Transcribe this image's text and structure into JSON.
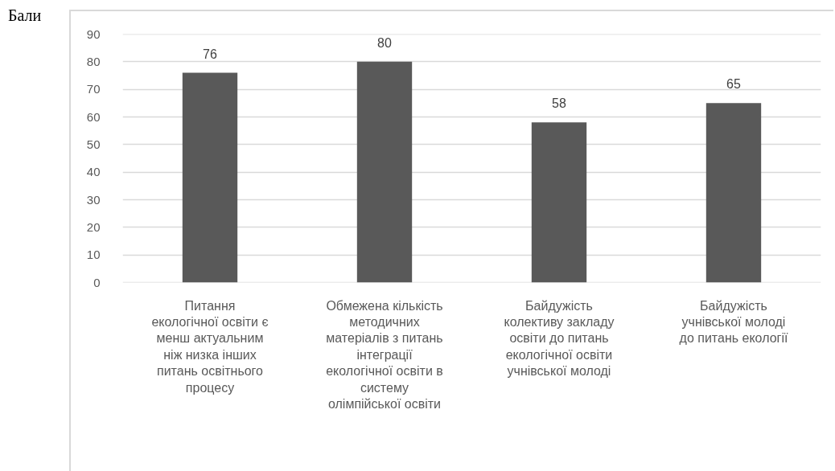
{
  "chart_data": {
    "type": "bar",
    "ylabel": "Бали",
    "categories": [
      "Питання\nекологічної освіти є\nменш актуальним\nніж низка інших\nпитань освітнього\nпроцесу",
      "Обмежена кількість\nметодичних\nматеріалів з питань\nінтеграції\nекологічної освіти в\nсистему\nолімпійської освіти",
      "Байдужість\nколективу закладу\nосвіти до питань\nекологічної освіти\nучнівської молоді",
      "Байдужість\nучнівської молоді\nдо питань екології"
    ],
    "values": [
      76,
      80,
      58,
      65
    ],
    "color": "#595959",
    "ylim": [
      0,
      90
    ],
    "yticks": [
      0,
      10,
      20,
      30,
      40,
      50,
      60,
      70,
      80,
      90
    ],
    "grid": "y",
    "data_labels": true
  }
}
